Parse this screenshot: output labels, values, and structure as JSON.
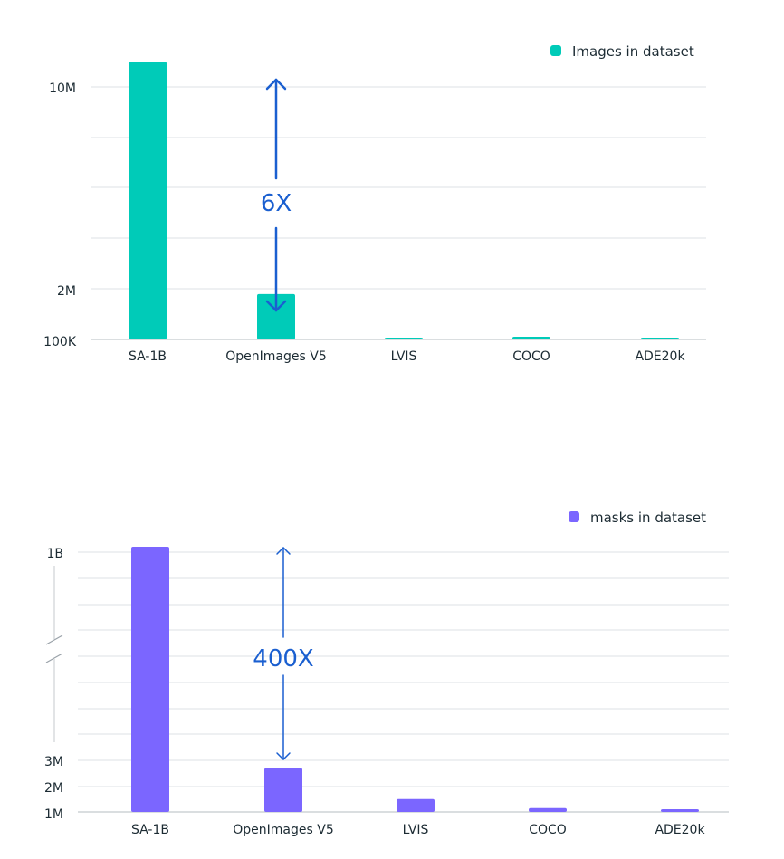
{
  "chart_data": [
    {
      "type": "bar",
      "legend_position": "top-right",
      "categories": [
        "SA-1B",
        "OpenImages V5",
        "LVIS",
        "COCO",
        "ADE20k"
      ],
      "series": [
        {
          "name": "Images in dataset",
          "color": "#00cbb8",
          "values": [
            11000000,
            1800000,
            164000,
            200000,
            27500
          ]
        }
      ],
      "ytick_labels": [
        "10M",
        "2M",
        "100K"
      ],
      "grid": true,
      "annotation": {
        "text": "6X",
        "from_category": "OpenImages V5",
        "from_value": 1800000,
        "to_value": 11000000,
        "color": "#1a5fd0"
      }
    },
    {
      "type": "bar",
      "legend_position": "top-right",
      "categories": [
        "SA-1B",
        "OpenImages V5",
        "LVIS",
        "COCO",
        "ADE20k"
      ],
      "series": [
        {
          "name": "masks in dataset",
          "color": "#7b66ff",
          "values": [
            1100000000,
            2700000,
            1500000,
            1150000,
            1100000
          ]
        }
      ],
      "ytick_labels": [
        "1B",
        "3M",
        "2M",
        "1M"
      ],
      "axis_break": true,
      "grid": true,
      "annotation": {
        "text": "400X",
        "from_category": "OpenImages V5",
        "from_value": 2700000,
        "to_value": 1100000000,
        "color": "#1a5fd0"
      }
    }
  ]
}
